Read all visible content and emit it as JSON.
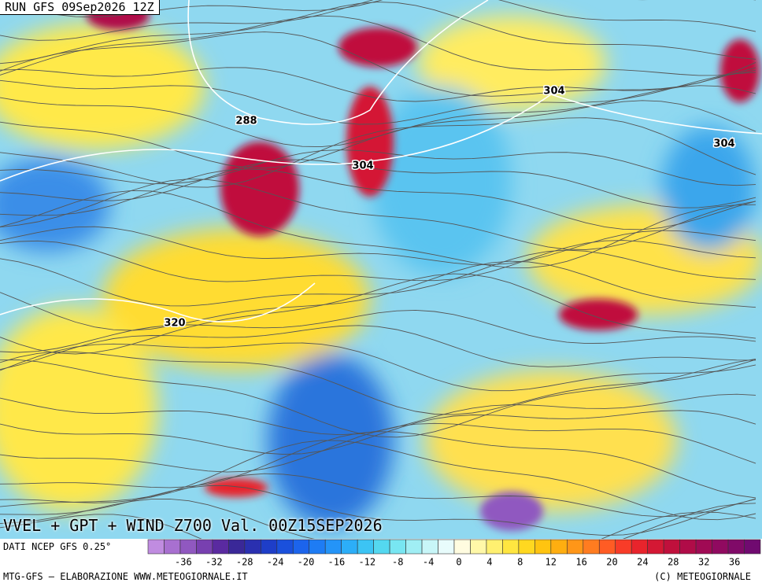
{
  "header": {
    "run": "RUN GFS 09Sep2026 12Z"
  },
  "map": {
    "title": "VVEL + GPT + WIND Z700 Val. 00Z15SEP2026",
    "contour_labels": [
      "288",
      "304",
      "304",
      "304",
      "320"
    ]
  },
  "legend": {
    "source": "DATI NCEP GFS 0.25°",
    "ticks": [
      "-36",
      "-32",
      "-28",
      "-24",
      "-20",
      "-16",
      "-12",
      "-8",
      "-4",
      "0",
      "4",
      "8",
      "12",
      "16",
      "20",
      "24",
      "28",
      "32",
      "36"
    ],
    "colors": [
      "#c08ce0",
      "#a870d0",
      "#9058c0",
      "#7840b0",
      "#5a2aa0",
      "#3a2898",
      "#2a30b0",
      "#1e3ec8",
      "#1a50dc",
      "#1c64ec",
      "#1e7cf4",
      "#2494f8",
      "#2caef8",
      "#3cc4f4",
      "#54d8f0",
      "#78e6f2",
      "#a0eef4",
      "#c8f6f8",
      "#e8fcfc",
      "#fffce0",
      "#fff8a8",
      "#fff070",
      "#ffe640",
      "#ffd820",
      "#ffc410",
      "#ffae10",
      "#ff9618",
      "#ff7c20",
      "#ff5c24",
      "#f83c28",
      "#e8242c",
      "#d41834",
      "#c0103c",
      "#b00c48",
      "#a00a54",
      "#900a60",
      "#800a68",
      "#700a70"
    ]
  },
  "footer": {
    "left": "MTG-GFS — ELABORAZIONE WWW.METEOGIORNALE.IT",
    "right": "(C) METEOGIORNALE"
  }
}
